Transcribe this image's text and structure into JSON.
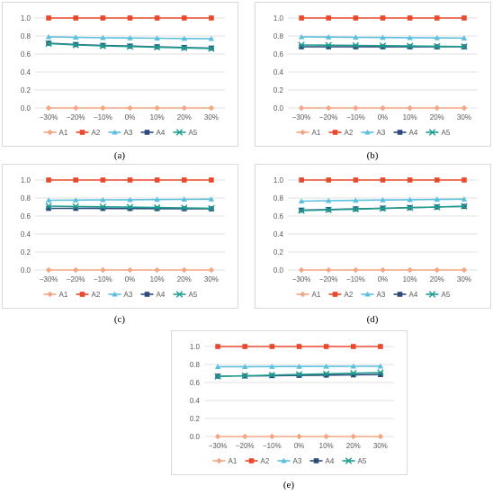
{
  "colors": {
    "A1": "#F4A582",
    "A2": "#E8482C",
    "A3": "#5BC0DE",
    "A4": "#2E4A7D",
    "A5": "#1E9E8E"
  },
  "markers": {
    "A1": "diamond",
    "A2": "square",
    "A3": "triangle",
    "A4": "square",
    "A5": "x"
  },
  "chart_data": [
    {
      "type": "line",
      "caption": "(a)",
      "categories": [
        "−30%",
        "−20%",
        "−10%",
        "0%",
        "10%",
        "20%",
        "30%"
      ],
      "yticks": [
        "0.0",
        "0.2",
        "0.4",
        "0.6",
        "0.8",
        "1.0"
      ],
      "ylim": [
        0,
        1.0
      ],
      "legend": "bottom",
      "grid": true,
      "series": [
        {
          "name": "A1",
          "values": [
            0.0,
            0.0,
            0.0,
            0.0,
            0.0,
            0.0,
            0.0
          ]
        },
        {
          "name": "A2",
          "values": [
            1.0,
            1.0,
            1.0,
            1.0,
            1.0,
            1.0,
            1.0
          ]
        },
        {
          "name": "A3",
          "values": [
            0.79,
            0.785,
            0.78,
            0.778,
            0.775,
            0.772,
            0.77
          ]
        },
        {
          "name": "A4",
          "values": [
            0.72,
            0.705,
            0.695,
            0.688,
            0.68,
            0.672,
            0.665
          ]
        },
        {
          "name": "A5",
          "values": [
            0.715,
            0.7,
            0.69,
            0.683,
            0.676,
            0.668,
            0.66
          ]
        }
      ]
    },
    {
      "type": "line",
      "caption": "(b)",
      "categories": [
        "−30%",
        "−20%",
        "−10%",
        "0%",
        "10%",
        "20%",
        "30%"
      ],
      "yticks": [
        "0.0",
        "0.2",
        "0.4",
        "0.6",
        "0.8",
        "1.0"
      ],
      "ylim": [
        0,
        1.0
      ],
      "legend": "bottom",
      "grid": true,
      "series": [
        {
          "name": "A1",
          "values": [
            0.0,
            0.0,
            0.0,
            0.0,
            0.0,
            0.0,
            0.0
          ]
        },
        {
          "name": "A2",
          "values": [
            1.0,
            1.0,
            1.0,
            1.0,
            1.0,
            1.0,
            1.0
          ]
        },
        {
          "name": "A3",
          "values": [
            0.79,
            0.788,
            0.785,
            0.783,
            0.781,
            0.779,
            0.777
          ]
        },
        {
          "name": "A4",
          "values": [
            0.68,
            0.68,
            0.68,
            0.68,
            0.68,
            0.68,
            0.68
          ]
        },
        {
          "name": "A5",
          "values": [
            0.7,
            0.698,
            0.695,
            0.692,
            0.689,
            0.686,
            0.683
          ]
        }
      ]
    },
    {
      "type": "line",
      "caption": "(c)",
      "categories": [
        "−30%",
        "−20%",
        "−10%",
        "0%",
        "10%",
        "20%",
        "30%"
      ],
      "yticks": [
        "0.0",
        "0.2",
        "0.4",
        "0.6",
        "0.8",
        "1.0"
      ],
      "ylim": [
        0,
        1.0
      ],
      "legend": "bottom",
      "grid": true,
      "series": [
        {
          "name": "A1",
          "values": [
            0.0,
            0.0,
            0.0,
            0.0,
            0.0,
            0.0,
            0.0
          ]
        },
        {
          "name": "A2",
          "values": [
            1.0,
            1.0,
            1.0,
            1.0,
            1.0,
            1.0,
            1.0
          ]
        },
        {
          "name": "A3",
          "values": [
            0.775,
            0.777,
            0.779,
            0.781,
            0.783,
            0.785,
            0.787
          ]
        },
        {
          "name": "A4",
          "values": [
            0.685,
            0.685,
            0.684,
            0.683,
            0.682,
            0.681,
            0.68
          ]
        },
        {
          "name": "A5",
          "values": [
            0.71,
            0.706,
            0.702,
            0.698,
            0.694,
            0.69,
            0.686
          ]
        }
      ]
    },
    {
      "type": "line",
      "caption": "(d)",
      "categories": [
        "−30%",
        "−20%",
        "−10%",
        "0%",
        "10%",
        "20%",
        "30%"
      ],
      "yticks": [
        "0.0",
        "0.2",
        "0.4",
        "0.6",
        "0.8",
        "1.0"
      ],
      "ylim": [
        0,
        1.0
      ],
      "legend": "bottom",
      "grid": true,
      "series": [
        {
          "name": "A1",
          "values": [
            0.0,
            0.0,
            0.0,
            0.0,
            0.0,
            0.0,
            0.0
          ]
        },
        {
          "name": "A2",
          "values": [
            1.0,
            1.0,
            1.0,
            1.0,
            1.0,
            1.0,
            1.0
          ]
        },
        {
          "name": "A3",
          "values": [
            0.765,
            0.77,
            0.774,
            0.778,
            0.781,
            0.784,
            0.787
          ]
        },
        {
          "name": "A4",
          "values": [
            0.665,
            0.672,
            0.679,
            0.686,
            0.693,
            0.7,
            0.707
          ]
        },
        {
          "name": "A5",
          "values": [
            0.66,
            0.668,
            0.676,
            0.684,
            0.692,
            0.7,
            0.708
          ]
        }
      ]
    },
    {
      "type": "line",
      "caption": "(e)",
      "categories": [
        "−30%",
        "−20%",
        "−10%",
        "0%",
        "10%",
        "20%",
        "30%"
      ],
      "yticks": [
        "0.0",
        "0.2",
        "0.4",
        "0.6",
        "0.8",
        "1.0"
      ],
      "ylim": [
        0,
        1.0
      ],
      "legend": "bottom",
      "grid": true,
      "series": [
        {
          "name": "A1",
          "values": [
            0.0,
            0.0,
            0.0,
            0.0,
            0.0,
            0.0,
            0.0
          ]
        },
        {
          "name": "A2",
          "values": [
            1.0,
            1.0,
            1.0,
            1.0,
            1.0,
            1.0,
            1.0
          ]
        },
        {
          "name": "A3",
          "values": [
            0.775,
            0.776,
            0.777,
            0.778,
            0.779,
            0.78,
            0.781
          ]
        },
        {
          "name": "A4",
          "values": [
            0.67,
            0.673,
            0.676,
            0.679,
            0.682,
            0.685,
            0.688
          ]
        },
        {
          "name": "A5",
          "values": [
            0.668,
            0.675,
            0.682,
            0.689,
            0.696,
            0.703,
            0.71
          ]
        }
      ]
    }
  ]
}
